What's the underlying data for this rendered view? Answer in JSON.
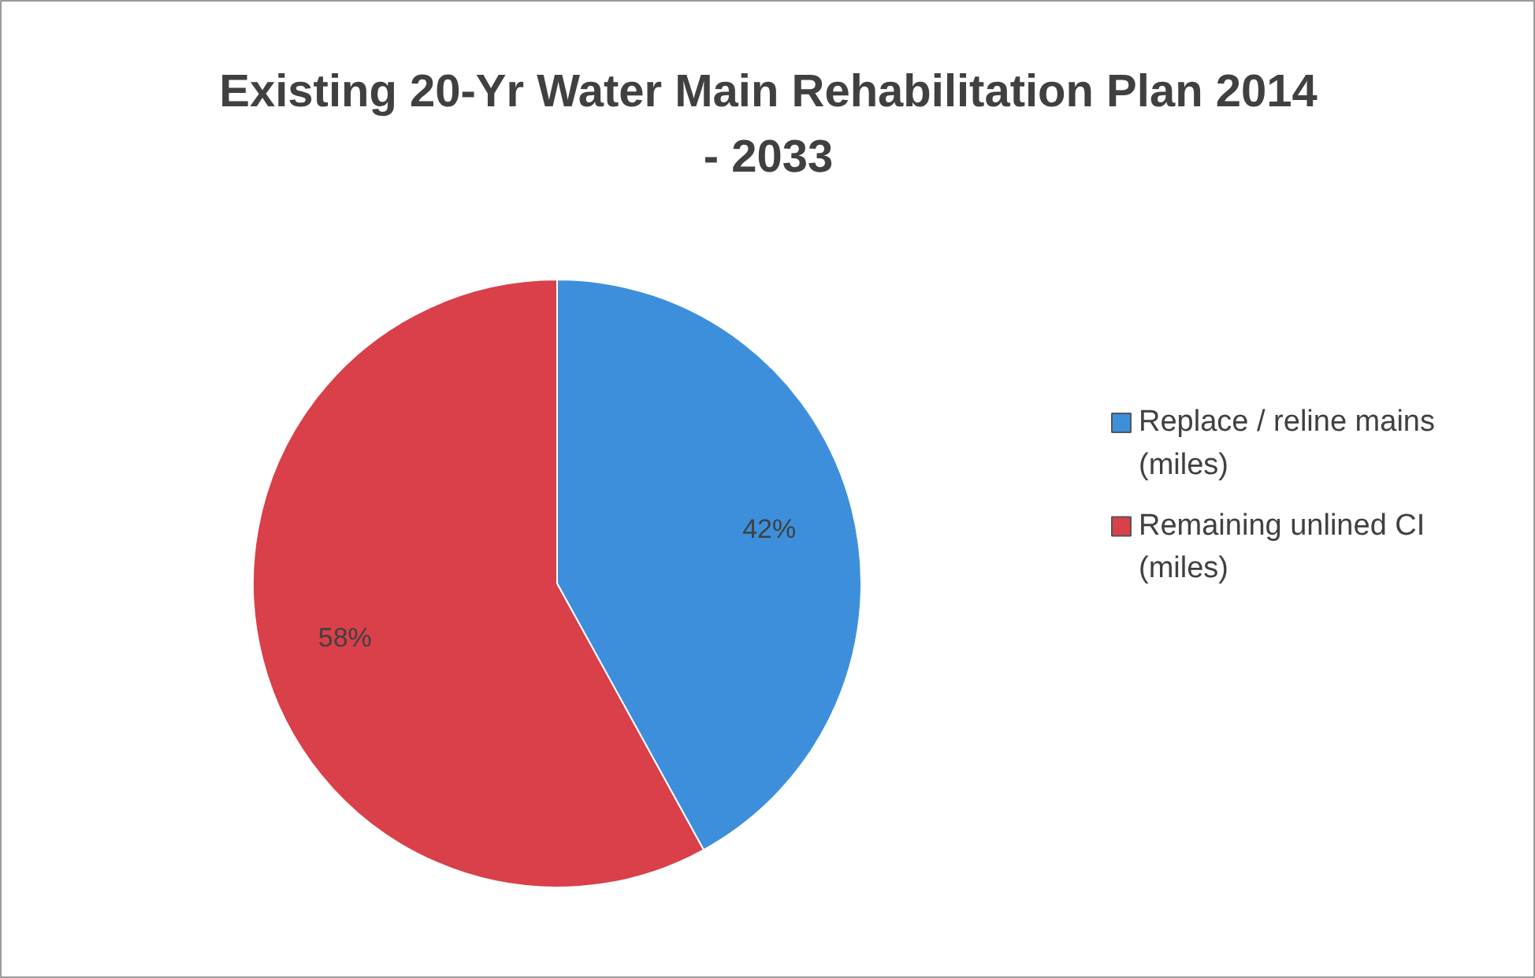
{
  "chart_data": {
    "type": "pie",
    "title": "Existing 20-Yr Water Main Rehabilitation Plan 2014 - 2033",
    "categories": [
      "Replace / reline mains (miles)",
      "Remaining unlined CI (miles)"
    ],
    "values": [
      42,
      58
    ],
    "colors": [
      "#3d8fdc",
      "#d9404a"
    ],
    "value_labels": [
      "42%",
      "58%"
    ],
    "legend": "right"
  }
}
